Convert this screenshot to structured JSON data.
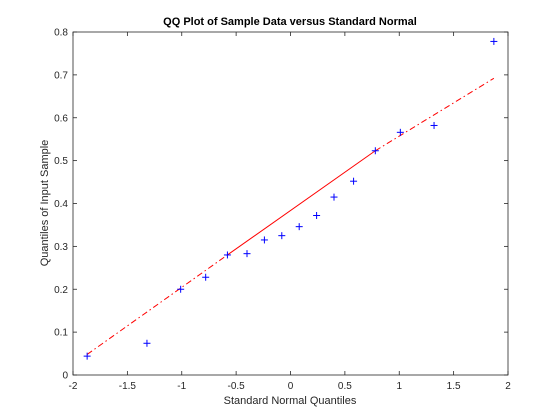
{
  "chart_data": {
    "type": "scatter",
    "title": "QQ Plot of Sample Data versus Standard Normal",
    "xlabel": "Standard Normal Quantiles",
    "ylabel": "Quantiles of Input Sample",
    "xlim": [
      -2,
      2
    ],
    "ylim": [
      0,
      0.8
    ],
    "x_ticks": [
      -2,
      -1.5,
      -1,
      -0.5,
      0,
      0.5,
      1,
      1.5,
      2
    ],
    "x_tick_labels": [
      "-2",
      "-1.5",
      "-1",
      "-0.5",
      "0",
      "0.5",
      "1",
      "1.5",
      "2"
    ],
    "y_ticks": [
      0,
      0.1,
      0.2,
      0.3,
      0.4,
      0.5,
      0.6,
      0.7,
      0.8
    ],
    "y_tick_labels": [
      "0",
      "0.1",
      "0.2",
      "0.3",
      "0.4",
      "0.5",
      "0.6",
      "0.7",
      "0.8"
    ],
    "grid": false,
    "marker": "+",
    "marker_color": "#0000ff",
    "points": [
      {
        "x": -1.87,
        "y": 0.044
      },
      {
        "x": -1.32,
        "y": 0.074
      },
      {
        "x": -1.01,
        "y": 0.2
      },
      {
        "x": -0.78,
        "y": 0.228
      },
      {
        "x": -0.58,
        "y": 0.28
      },
      {
        "x": -0.4,
        "y": 0.283
      },
      {
        "x": -0.24,
        "y": 0.315
      },
      {
        "x": -0.08,
        "y": 0.325
      },
      {
        "x": 0.08,
        "y": 0.346
      },
      {
        "x": 0.24,
        "y": 0.372
      },
      {
        "x": 0.4,
        "y": 0.415
      },
      {
        "x": 0.58,
        "y": 0.452
      },
      {
        "x": 0.78,
        "y": 0.523
      },
      {
        "x": 1.01,
        "y": 0.566
      },
      {
        "x": 1.32,
        "y": 0.582
      },
      {
        "x": 1.87,
        "y": 0.778
      }
    ],
    "reference_line": {
      "color": "#ff0000",
      "solid_segment": [
        [
          -0.58,
          0.28
        ],
        [
          0.78,
          0.523
        ]
      ],
      "dashed_extension_left": [
        [
          -1.87,
          0.048
        ],
        [
          -0.58,
          0.28
        ]
      ],
      "dashed_extension_right": [
        [
          0.78,
          0.523
        ],
        [
          1.87,
          0.692
        ]
      ]
    }
  }
}
